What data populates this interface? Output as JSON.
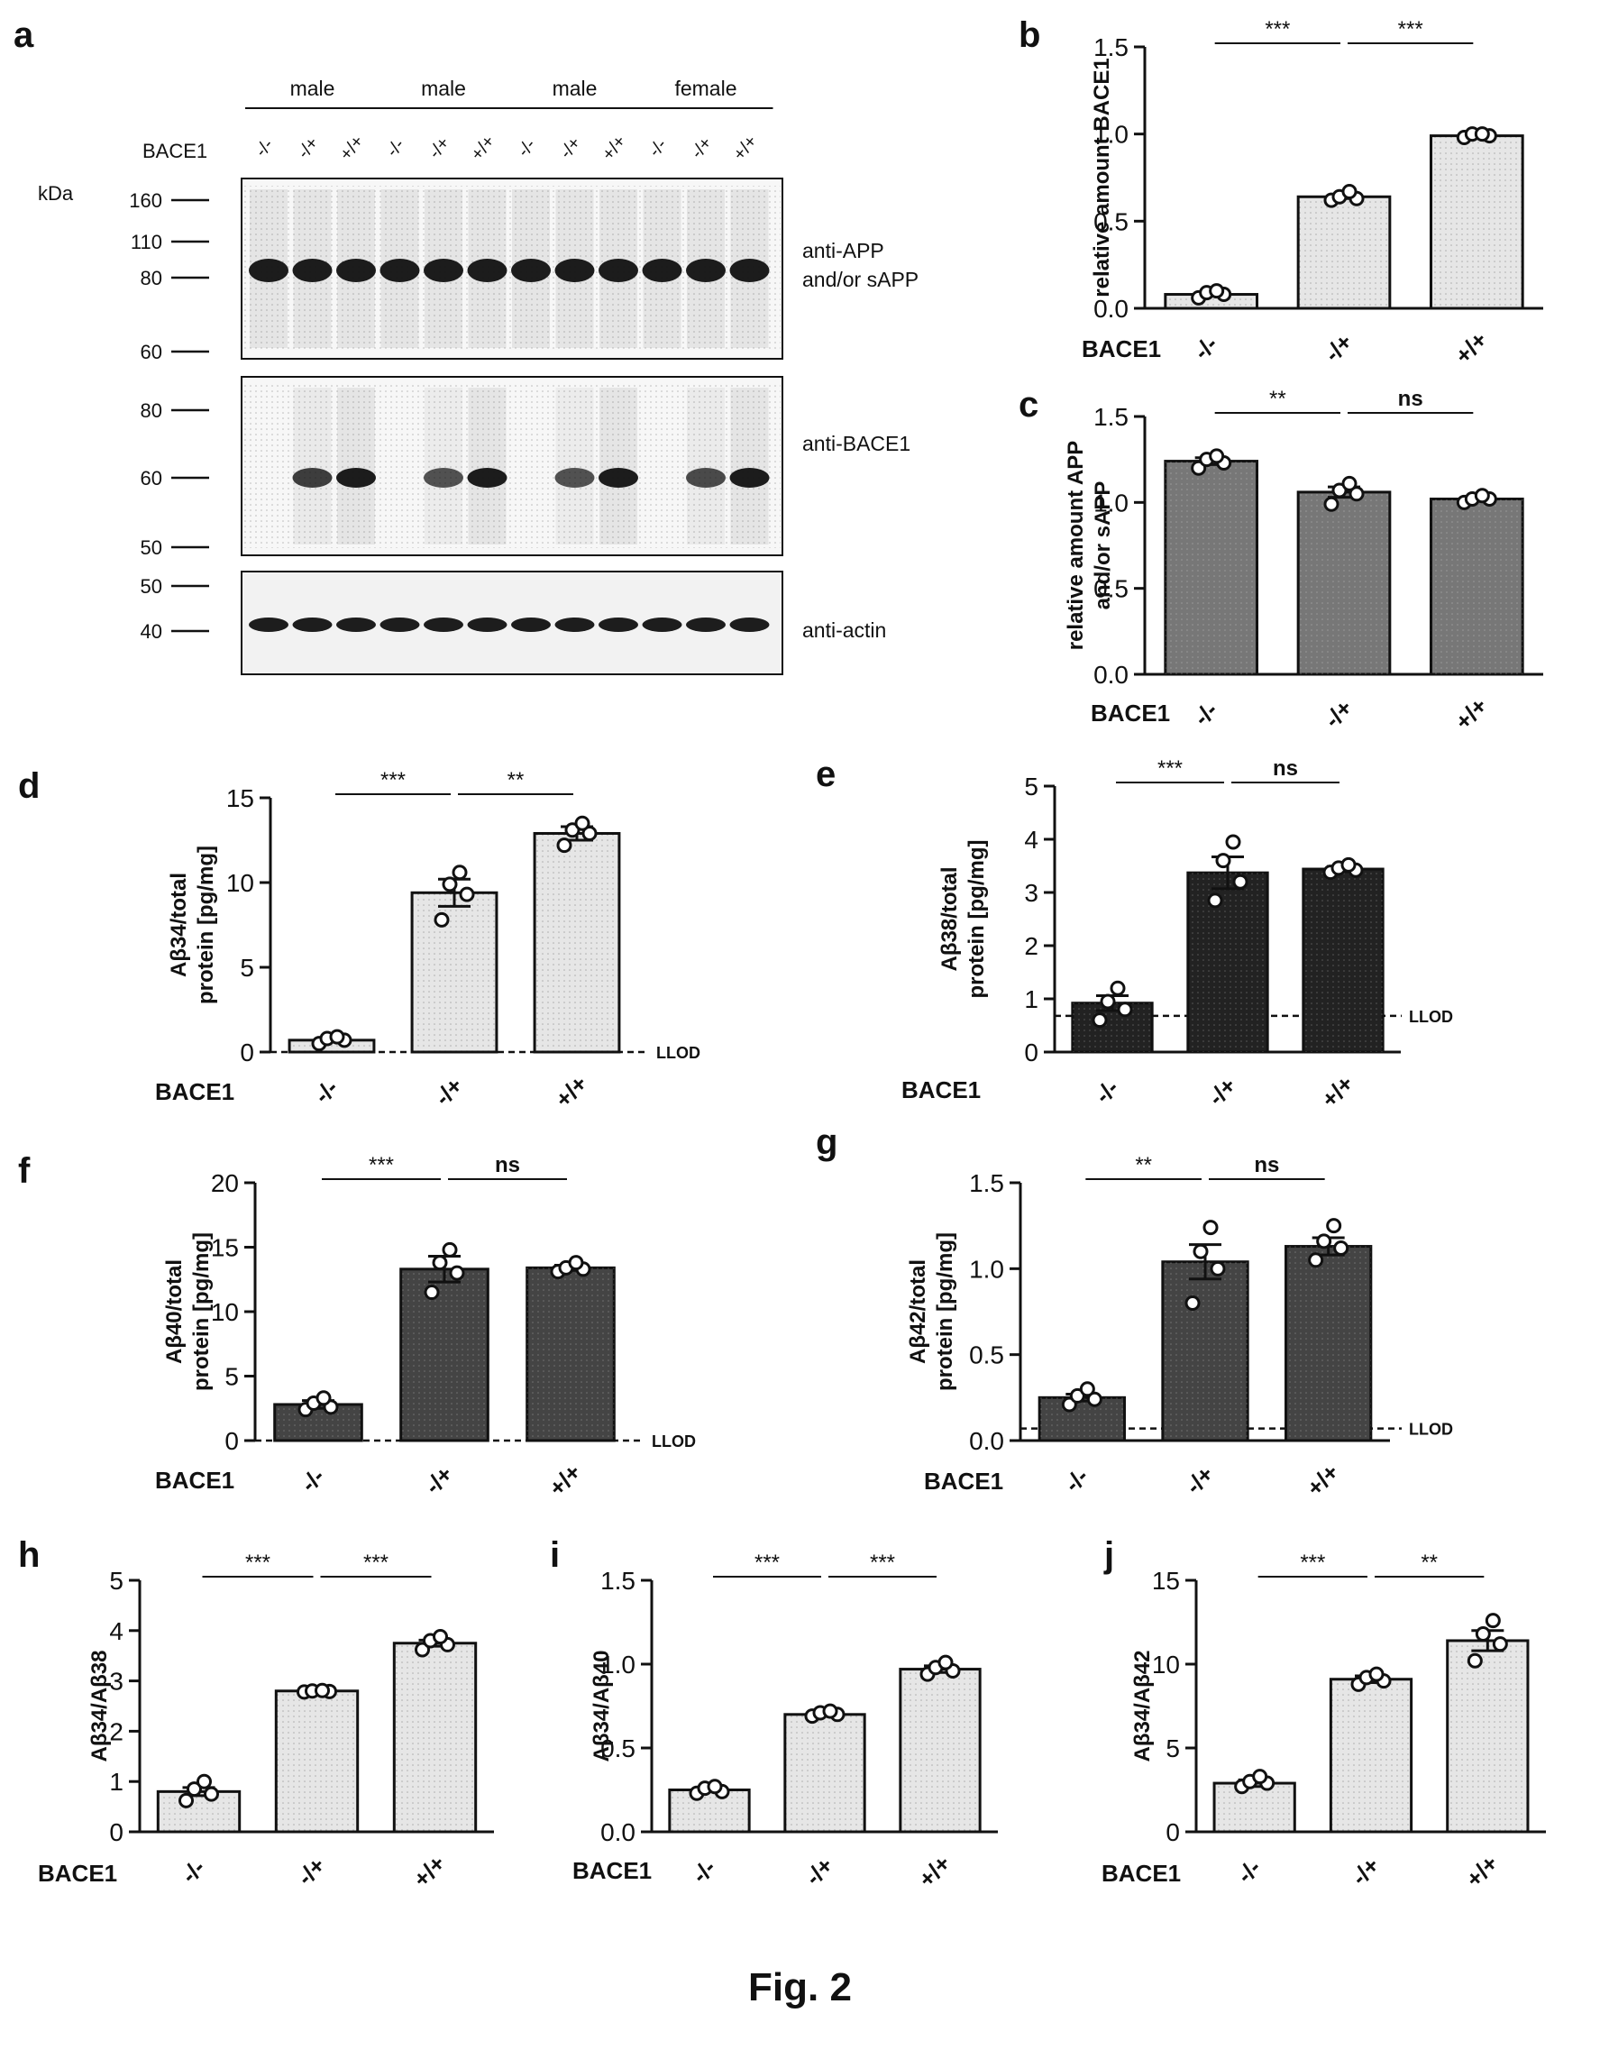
{
  "figure_caption": "Fig. 2",
  "panel_a": {
    "letter": "a",
    "kda_label": "kDa",
    "genotype_row_label": "BACE1",
    "group_labels": [
      "male",
      "male",
      "male",
      "female"
    ],
    "lane_genotypes": [
      "-/-",
      "-/+",
      "+/+",
      "-/-",
      "-/+",
      "+/+",
      "-/-",
      "-/+",
      "+/+",
      "-/-",
      "-/+",
      "+/+"
    ],
    "blots": [
      {
        "markers": [
          "160",
          "110",
          "80",
          "60"
        ],
        "label_lines": [
          "anti-APP",
          "and/or sAPP"
        ]
      },
      {
        "markers": [
          "80",
          "60",
          "50"
        ],
        "label_lines": [
          "anti-BACE1"
        ]
      },
      {
        "markers": [
          "50",
          "40"
        ],
        "label_lines": [
          "anti-actin"
        ]
      }
    ]
  },
  "chart_data": [
    {
      "panel": "b",
      "type": "bar",
      "fill": "#e6e6e6",
      "categories": [
        "-/-",
        "-/+",
        "+/+"
      ],
      "values": [
        0.08,
        0.64,
        0.99
      ],
      "sem": [
        0.01,
        0.01,
        0.01
      ],
      "points": [
        [
          0.06,
          0.08,
          0.09,
          0.1
        ],
        [
          0.62,
          0.63,
          0.64,
          0.67
        ],
        [
          0.98,
          0.99,
          1.0,
          1.0
        ]
      ],
      "ylim": [
        0,
        1.5
      ],
      "yticks": [
        "0.0",
        "0.5",
        "1.0",
        "1.5"
      ],
      "ylabel_lines": [
        "relative amount BACE1"
      ],
      "xlabel": "BACE1",
      "significance": [
        {
          "from": 0,
          "to": 1,
          "label": "***"
        },
        {
          "from": 1,
          "to": 2,
          "label": "***"
        }
      ]
    },
    {
      "panel": "c",
      "type": "bar",
      "fill": "#777777",
      "categories": [
        "-/-",
        "-/+",
        "+/+"
      ],
      "values": [
        1.24,
        1.06,
        1.02
      ],
      "sem": [
        0.02,
        0.03,
        0.01
      ],
      "points": [
        [
          1.2,
          1.23,
          1.25,
          1.27
        ],
        [
          0.99,
          1.05,
          1.07,
          1.11
        ],
        [
          1.0,
          1.02,
          1.02,
          1.04
        ]
      ],
      "ylim": [
        0,
        1.5
      ],
      "yticks": [
        "0.0",
        "0.5",
        "1.0",
        "1.5"
      ],
      "ylabel_lines": [
        "relative amount APP",
        "and/or sAPP"
      ],
      "xlabel": "BACE1",
      "significance": [
        {
          "from": 0,
          "to": 1,
          "label": "**"
        },
        {
          "from": 1,
          "to": 2,
          "label": "ns"
        }
      ]
    },
    {
      "panel": "d",
      "type": "bar",
      "fill": "#e6e6e6",
      "categories": [
        "-/-",
        "-/+",
        "+/+"
      ],
      "values": [
        0.7,
        9.4,
        12.9
      ],
      "sem": [
        0.1,
        0.8,
        0.4
      ],
      "points": [
        [
          0.5,
          0.7,
          0.8,
          0.9
        ],
        [
          7.8,
          9.3,
          9.9,
          10.6
        ],
        [
          12.2,
          12.9,
          13.1,
          13.5
        ]
      ],
      "ylim": [
        0,
        15
      ],
      "yticks": [
        "0",
        "5",
        "10",
        "15"
      ],
      "ylabel_lines": [
        "Aβ34/total",
        "protein [pg/mg]"
      ],
      "xlabel": "BACE1",
      "llod": {
        "value": 0,
        "label": "LLOD"
      },
      "significance": [
        {
          "from": 0,
          "to": 1,
          "label": "***"
        },
        {
          "from": 1,
          "to": 2,
          "label": "**"
        }
      ]
    },
    {
      "panel": "e",
      "type": "bar",
      "fill": "#222222",
      "categories": [
        "-/-",
        "-/+",
        "+/+"
      ],
      "values": [
        0.92,
        3.37,
        3.44
      ],
      "sem": [
        0.14,
        0.3,
        0.05
      ],
      "points": [
        [
          0.6,
          0.8,
          0.95,
          1.2
        ],
        [
          2.85,
          3.2,
          3.6,
          3.95
        ],
        [
          3.38,
          3.42,
          3.46,
          3.52
        ]
      ],
      "ylim": [
        0,
        5
      ],
      "yticks": [
        "0",
        "1",
        "2",
        "3",
        "4",
        "5"
      ],
      "ylabel_lines": [
        "Aβ38/total",
        "protein [pg/mg]"
      ],
      "xlabel": "BACE1",
      "llod": {
        "value": 0.68,
        "label": "LLOD"
      },
      "significance": [
        {
          "from": 0,
          "to": 1,
          "label": "***"
        },
        {
          "from": 1,
          "to": 2,
          "label": "ns"
        }
      ]
    },
    {
      "panel": "f",
      "type": "bar",
      "fill": "#444444",
      "categories": [
        "-/-",
        "-/+",
        "+/+"
      ],
      "values": [
        2.8,
        13.3,
        13.4
      ],
      "sem": [
        0.3,
        1.0,
        0.2
      ],
      "points": [
        [
          2.4,
          2.6,
          2.9,
          3.3
        ],
        [
          11.5,
          13.0,
          13.8,
          14.8
        ],
        [
          13.1,
          13.3,
          13.4,
          13.8
        ]
      ],
      "ylim": [
        0,
        20
      ],
      "yticks": [
        "0",
        "5",
        "10",
        "15",
        "20"
      ],
      "ylabel_lines": [
        "Aβ40/total",
        "protein [pg/mg]"
      ],
      "xlabel": "BACE1",
      "llod": {
        "value": 0,
        "label": "LLOD"
      },
      "significance": [
        {
          "from": 0,
          "to": 1,
          "label": "***"
        },
        {
          "from": 1,
          "to": 2,
          "label": "ns"
        }
      ]
    },
    {
      "panel": "g",
      "type": "bar",
      "fill": "#444444",
      "categories": [
        "-/-",
        "-/+",
        "+/+"
      ],
      "values": [
        0.25,
        1.04,
        1.13
      ],
      "sem": [
        0.02,
        0.1,
        0.05
      ],
      "points": [
        [
          0.21,
          0.24,
          0.26,
          0.3
        ],
        [
          0.8,
          1.0,
          1.1,
          1.24
        ],
        [
          1.05,
          1.12,
          1.16,
          1.25
        ]
      ],
      "ylim": [
        0,
        1.5
      ],
      "yticks": [
        "0.0",
        "0.5",
        "1.0",
        "1.5"
      ],
      "ylabel_lines": [
        "Aβ42/total",
        "protein [pg/mg]"
      ],
      "xlabel": "BACE1",
      "llod": {
        "value": 0.07,
        "label": "LLOD"
      },
      "significance": [
        {
          "from": 0,
          "to": 1,
          "label": "**"
        },
        {
          "from": 1,
          "to": 2,
          "label": "ns"
        }
      ]
    },
    {
      "panel": "h",
      "type": "bar",
      "fill": "#e6e6e6",
      "categories": [
        "-/-",
        "-/+",
        "+/+"
      ],
      "values": [
        0.8,
        2.8,
        3.75
      ],
      "sem": [
        0.08,
        0.01,
        0.06
      ],
      "points": [
        [
          0.62,
          0.75,
          0.85,
          1.0
        ],
        [
          2.78,
          2.79,
          2.8,
          2.81
        ],
        [
          3.62,
          3.72,
          3.8,
          3.88
        ]
      ],
      "ylim": [
        0,
        5
      ],
      "yticks": [
        "0",
        "1",
        "2",
        "3",
        "4",
        "5"
      ],
      "ylabel_lines": [
        "Aβ34/Aβ38"
      ],
      "xlabel": "BACE1",
      "significance": [
        {
          "from": 0,
          "to": 1,
          "label": "***"
        },
        {
          "from": 1,
          "to": 2,
          "label": "***"
        }
      ]
    },
    {
      "panel": "i",
      "type": "bar",
      "fill": "#e6e6e6",
      "categories": [
        "-/-",
        "-/+",
        "+/+"
      ],
      "values": [
        0.25,
        0.7,
        0.97
      ],
      "sem": [
        0.01,
        0.01,
        0.02
      ],
      "points": [
        [
          0.23,
          0.24,
          0.26,
          0.27
        ],
        [
          0.69,
          0.7,
          0.71,
          0.72
        ],
        [
          0.94,
          0.96,
          0.98,
          1.01
        ]
      ],
      "ylim": [
        0,
        1.5
      ],
      "yticks": [
        "0.0",
        "0.5",
        "1.0",
        "1.5"
      ],
      "ylabel_lines": [
        "Aβ34/Aβ40"
      ],
      "xlabel": "BACE1",
      "significance": [
        {
          "from": 0,
          "to": 1,
          "label": "***"
        },
        {
          "from": 1,
          "to": 2,
          "label": "***"
        }
      ]
    },
    {
      "panel": "j",
      "type": "bar",
      "fill": "#e6e6e6",
      "categories": [
        "-/-",
        "-/+",
        "+/+"
      ],
      "values": [
        2.9,
        9.1,
        11.4
      ],
      "sem": [
        0.2,
        0.2,
        0.6
      ],
      "points": [
        [
          2.7,
          2.9,
          3.0,
          3.3
        ],
        [
          8.8,
          9.0,
          9.2,
          9.4
        ],
        [
          10.2,
          11.2,
          11.8,
          12.6
        ]
      ],
      "ylim": [
        0,
        15
      ],
      "yticks": [
        "0",
        "5",
        "10",
        "15"
      ],
      "ylabel_lines": [
        "Aβ34/Aβ42"
      ],
      "xlabel": "BACE1",
      "significance": [
        {
          "from": 0,
          "to": 1,
          "label": "***"
        },
        {
          "from": 1,
          "to": 2,
          "label": "**"
        }
      ]
    }
  ]
}
